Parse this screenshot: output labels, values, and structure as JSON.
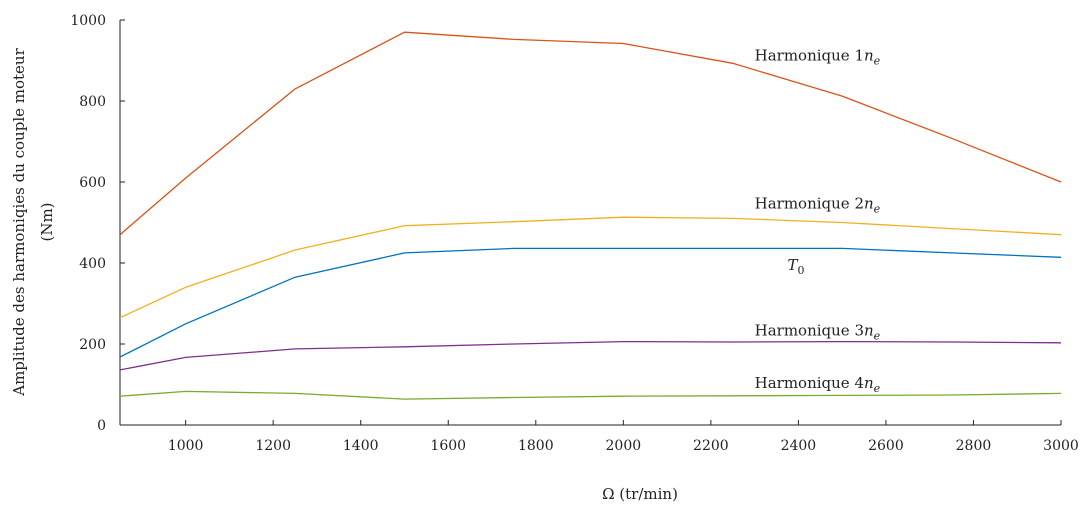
{
  "chart_data": {
    "type": "line",
    "title": "",
    "xlabel": "Ω (tr/min)",
    "ylabel_line1": "Amplitude des harmoniqies du couple moteur",
    "ylabel_line2": "(Nm)",
    "xlim": [
      850,
      3000
    ],
    "ylim": [
      0,
      1000
    ],
    "xticks": [
      1000,
      1200,
      1400,
      1600,
      1800,
      2000,
      2200,
      2400,
      2600,
      2800,
      3000
    ],
    "yticks": [
      0,
      200,
      400,
      600,
      800,
      1000
    ],
    "grid": false,
    "series": [
      {
        "key": "h1",
        "label_prefix": "Harmonique 1",
        "label_var": "n",
        "label_sub": "e",
        "label_at": [
          2300,
          900
        ],
        "color": "#d95319",
        "points": [
          [
            850,
            470
          ],
          [
            1000,
            610
          ],
          [
            1250,
            830
          ],
          [
            1500,
            970
          ],
          [
            1750,
            952
          ],
          [
            2000,
            942
          ],
          [
            2250,
            893
          ],
          [
            2500,
            812
          ],
          [
            2750,
            708
          ],
          [
            3000,
            600
          ]
        ]
      },
      {
        "key": "h2",
        "label_prefix": "Harmonique 2",
        "label_var": "n",
        "label_sub": "e",
        "label_at": [
          2300,
          535
        ],
        "color": "#edb120",
        "points": [
          [
            850,
            265
          ],
          [
            1000,
            340
          ],
          [
            1250,
            432
          ],
          [
            1500,
            492
          ],
          [
            1750,
            502
          ],
          [
            2000,
            513
          ],
          [
            2250,
            510
          ],
          [
            2500,
            500
          ],
          [
            2750,
            485
          ],
          [
            3000,
            470
          ]
        ]
      },
      {
        "key": "t0",
        "label_prefix": "",
        "label_var": "T",
        "label_sub": "0",
        "label_at": [
          2375,
          383
        ],
        "color": "#0072bd",
        "points": [
          [
            850,
            168
          ],
          [
            1000,
            250
          ],
          [
            1250,
            365
          ],
          [
            1500,
            425
          ],
          [
            1750,
            436
          ],
          [
            2000,
            436
          ],
          [
            2250,
            436
          ],
          [
            2500,
            436
          ],
          [
            2750,
            425
          ],
          [
            3000,
            414
          ]
        ]
      },
      {
        "key": "h3",
        "label_prefix": "Harmonique 3",
        "label_var": "n",
        "label_sub": "e",
        "label_at": [
          2300,
          221
        ],
        "color": "#7e2f8e",
        "points": [
          [
            850,
            136
          ],
          [
            1000,
            167
          ],
          [
            1250,
            188
          ],
          [
            1500,
            193
          ],
          [
            1750,
            200
          ],
          [
            2000,
            206
          ],
          [
            2250,
            205
          ],
          [
            2500,
            206
          ],
          [
            2750,
            205
          ],
          [
            3000,
            203
          ]
        ]
      },
      {
        "key": "h4",
        "label_prefix": "Harmonique 4",
        "label_var": "n",
        "label_sub": "e",
        "label_at": [
          2300,
          91
        ],
        "color": "#77ac30",
        "points": [
          [
            850,
            71
          ],
          [
            1000,
            83
          ],
          [
            1250,
            78
          ],
          [
            1500,
            64
          ],
          [
            1750,
            68
          ],
          [
            2000,
            71
          ],
          [
            2250,
            72
          ],
          [
            2500,
            73
          ],
          [
            2750,
            74
          ],
          [
            3000,
            78
          ]
        ]
      }
    ]
  }
}
